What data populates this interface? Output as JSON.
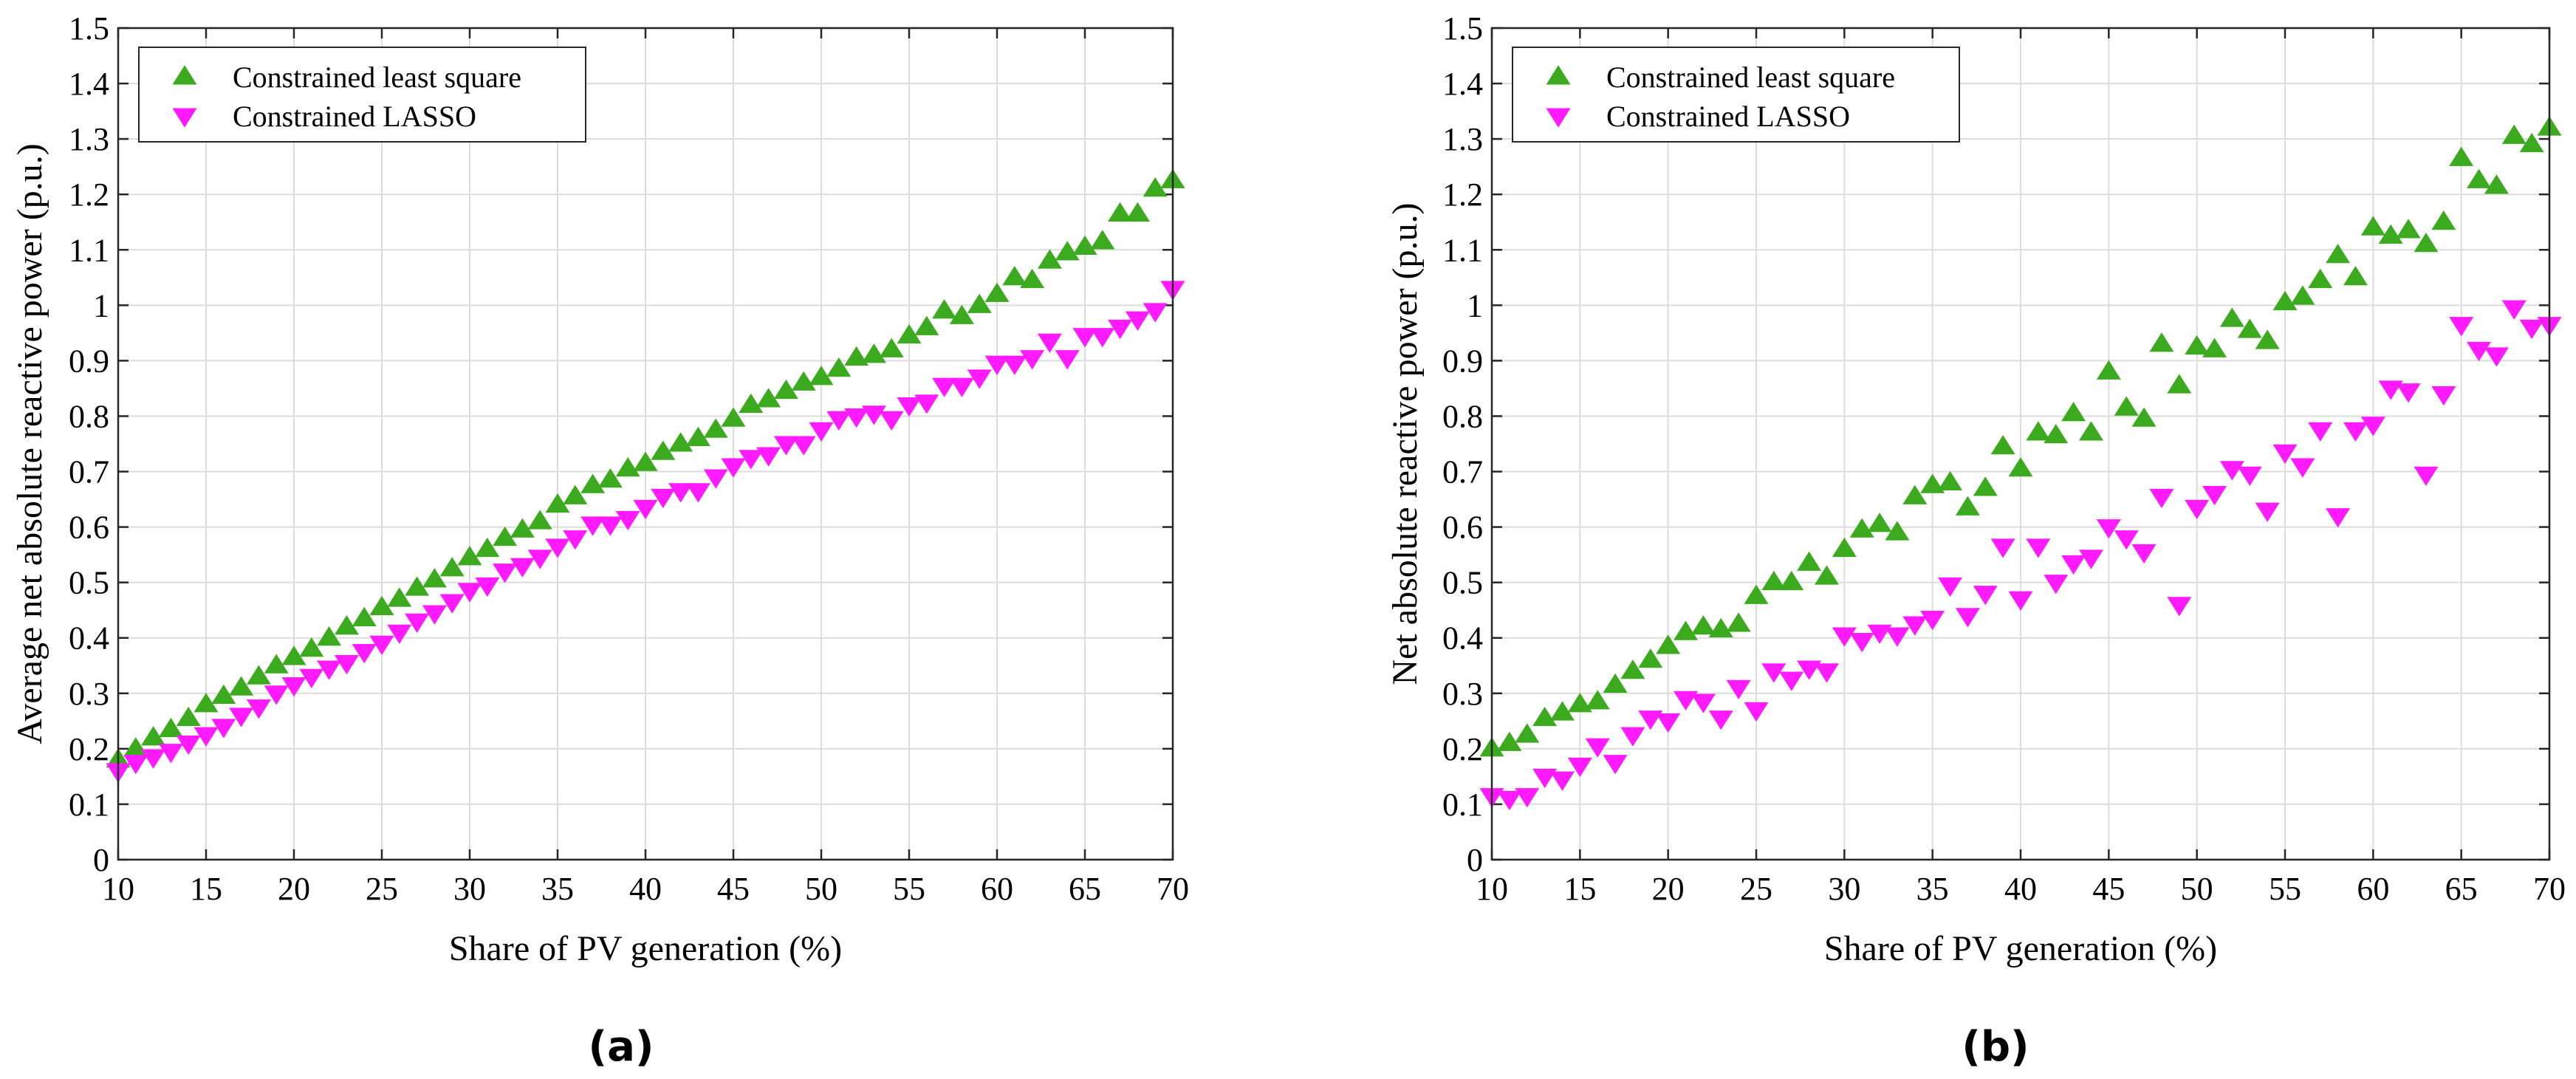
{
  "chart_data": [
    {
      "type": "scatter",
      "panel_label": "(a)",
      "xlabel": "Share of PV generation (%)",
      "ylabel": "Average net absolute reactive power (p.u.)",
      "xlim": [
        10,
        70
      ],
      "ylim": [
        0,
        1.5
      ],
      "xticks": [
        "10",
        "15",
        "20",
        "25",
        "30",
        "35",
        "40",
        "45",
        "50",
        "55",
        "60",
        "65",
        "70"
      ],
      "yticks": [
        "0",
        "0.1",
        "0.2",
        "0.3",
        "0.4",
        "0.5",
        "0.6",
        "0.7",
        "0.8",
        "0.9",
        "1",
        "1.1",
        "1.2",
        "1.3",
        "1.4",
        "1.5"
      ],
      "grid": true,
      "legend_position": "top-left",
      "series": [
        {
          "name": "Constrained least square",
          "marker": "triangle-up",
          "color": "#3caa1e",
          "x": [
            10,
            11,
            12,
            13,
            14,
            15,
            16,
            17,
            18,
            19,
            20,
            21,
            22,
            23,
            24,
            25,
            26,
            27,
            28,
            29,
            30,
            31,
            32,
            33,
            34,
            35,
            36,
            37,
            38,
            39,
            40,
            41,
            42,
            43,
            44,
            45,
            46,
            47,
            48,
            49,
            50,
            51,
            52,
            53,
            54,
            55,
            56,
            57,
            58,
            59,
            60,
            61,
            62,
            63,
            64,
            65,
            66,
            67,
            68,
            69,
            70
          ],
          "values": [
            0.18,
            0.2,
            0.22,
            0.235,
            0.255,
            0.28,
            0.295,
            0.31,
            0.33,
            0.35,
            0.365,
            0.38,
            0.4,
            0.42,
            0.435,
            0.455,
            0.47,
            0.49,
            0.505,
            0.525,
            0.545,
            0.56,
            0.58,
            0.595,
            0.61,
            0.64,
            0.655,
            0.675,
            0.685,
            0.705,
            0.715,
            0.735,
            0.75,
            0.76,
            0.775,
            0.795,
            0.82,
            0.83,
            0.845,
            0.86,
            0.87,
            0.885,
            0.905,
            0.91,
            0.92,
            0.945,
            0.96,
            0.99,
            0.98,
            1.0,
            1.02,
            1.05,
            1.045,
            1.08,
            1.095,
            1.105,
            1.115,
            1.165,
            1.165,
            1.21,
            1.225
          ]
        },
        {
          "name": "Constrained LASSO",
          "marker": "triangle-down",
          "color": "#ff1aff",
          "x": [
            10,
            11,
            12,
            13,
            14,
            15,
            16,
            17,
            18,
            19,
            20,
            21,
            22,
            23,
            24,
            25,
            26,
            27,
            28,
            29,
            30,
            31,
            32,
            33,
            34,
            35,
            36,
            37,
            38,
            39,
            40,
            41,
            42,
            43,
            44,
            45,
            46,
            47,
            48,
            49,
            50,
            51,
            52,
            53,
            54,
            55,
            56,
            57,
            58,
            59,
            60,
            61,
            62,
            63,
            64,
            65,
            66,
            67,
            68,
            69,
            70
          ],
          "values": [
            0.16,
            0.175,
            0.185,
            0.195,
            0.21,
            0.225,
            0.24,
            0.26,
            0.275,
            0.3,
            0.315,
            0.33,
            0.345,
            0.355,
            0.375,
            0.39,
            0.41,
            0.43,
            0.445,
            0.465,
            0.485,
            0.495,
            0.52,
            0.53,
            0.545,
            0.565,
            0.58,
            0.605,
            0.605,
            0.615,
            0.635,
            0.655,
            0.665,
            0.665,
            0.69,
            0.71,
            0.725,
            0.73,
            0.75,
            0.75,
            0.775,
            0.795,
            0.8,
            0.805,
            0.795,
            0.82,
            0.825,
            0.855,
            0.855,
            0.87,
            0.895,
            0.895,
            0.905,
            0.935,
            0.905,
            0.945,
            0.945,
            0.96,
            0.975,
            0.99,
            1.03
          ]
        }
      ]
    },
    {
      "type": "scatter",
      "panel_label": "(b)",
      "xlabel": "Share of PV generation (%)",
      "ylabel": "Net absolute reactive power (p.u.)",
      "xlim": [
        10,
        70
      ],
      "ylim": [
        0,
        1.5
      ],
      "xticks": [
        "10",
        "15",
        "20",
        "25",
        "30",
        "35",
        "40",
        "45",
        "50",
        "55",
        "60",
        "65",
        "70"
      ],
      "yticks": [
        "0",
        "0.1",
        "0.2",
        "0.3",
        "0.4",
        "0.5",
        "0.6",
        "0.7",
        "0.8",
        "0.9",
        "1",
        "1.1",
        "1.2",
        "1.3",
        "1.4",
        "1.5"
      ],
      "grid": true,
      "legend_position": "top-left",
      "series": [
        {
          "name": "Constrained least square",
          "marker": "triangle-up",
          "color": "#3caa1e",
          "x": [
            10,
            11,
            12,
            13,
            14,
            15,
            16,
            17,
            18,
            19,
            20,
            21,
            22,
            23,
            24,
            25,
            26,
            27,
            28,
            29,
            30,
            31,
            32,
            33,
            34,
            35,
            36,
            37,
            38,
            39,
            40,
            41,
            42,
            43,
            44,
            45,
            46,
            47,
            48,
            49,
            50,
            51,
            52,
            53,
            54,
            55,
            56,
            57,
            58,
            59,
            60,
            61,
            62,
            63,
            64,
            65,
            66,
            67,
            68,
            69,
            70
          ],
          "values": [
            0.2,
            0.21,
            0.225,
            0.255,
            0.265,
            0.28,
            0.285,
            0.315,
            0.34,
            0.36,
            0.385,
            0.41,
            0.42,
            0.415,
            0.425,
            0.475,
            0.5,
            0.5,
            0.535,
            0.51,
            0.56,
            0.595,
            0.605,
            0.59,
            0.655,
            0.675,
            0.68,
            0.635,
            0.67,
            0.745,
            0.705,
            0.77,
            0.765,
            0.805,
            0.77,
            0.88,
            0.815,
            0.795,
            0.93,
            0.855,
            0.925,
            0.92,
            0.975,
            0.955,
            0.935,
            1.005,
            1.015,
            1.045,
            1.09,
            1.05,
            1.14,
            1.125,
            1.135,
            1.11,
            1.15,
            1.265,
            1.225,
            1.215,
            1.305,
            1.29,
            1.32
          ]
        },
        {
          "name": "Constrained LASSO",
          "marker": "triangle-down",
          "color": "#ff1aff",
          "x": [
            10,
            11,
            12,
            13,
            14,
            15,
            16,
            17,
            18,
            19,
            20,
            21,
            22,
            23,
            24,
            25,
            26,
            27,
            28,
            29,
            30,
            31,
            32,
            33,
            34,
            35,
            36,
            37,
            38,
            39,
            40,
            41,
            42,
            43,
            44,
            45,
            46,
            47,
            48,
            49,
            50,
            51,
            52,
            53,
            54,
            55,
            56,
            57,
            58,
            59,
            60,
            61,
            62,
            63,
            64,
            65,
            66,
            67,
            68,
            69,
            70
          ],
          "values": [
            0.115,
            0.11,
            0.115,
            0.15,
            0.145,
            0.17,
            0.205,
            0.175,
            0.225,
            0.255,
            0.25,
            0.29,
            0.285,
            0.255,
            0.31,
            0.27,
            0.34,
            0.325,
            0.345,
            0.34,
            0.405,
            0.395,
            0.41,
            0.405,
            0.425,
            0.435,
            0.495,
            0.44,
            0.48,
            0.565,
            0.47,
            0.565,
            0.5,
            0.535,
            0.545,
            0.6,
            0.58,
            0.555,
            0.655,
            0.46,
            0.635,
            0.66,
            0.705,
            0.695,
            0.63,
            0.735,
            0.71,
            0.775,
            0.62,
            0.775,
            0.785,
            0.85,
            0.845,
            0.695,
            0.84,
            0.965,
            0.92,
            0.91,
            0.995,
            0.96,
            0.965
          ]
        }
      ]
    }
  ]
}
